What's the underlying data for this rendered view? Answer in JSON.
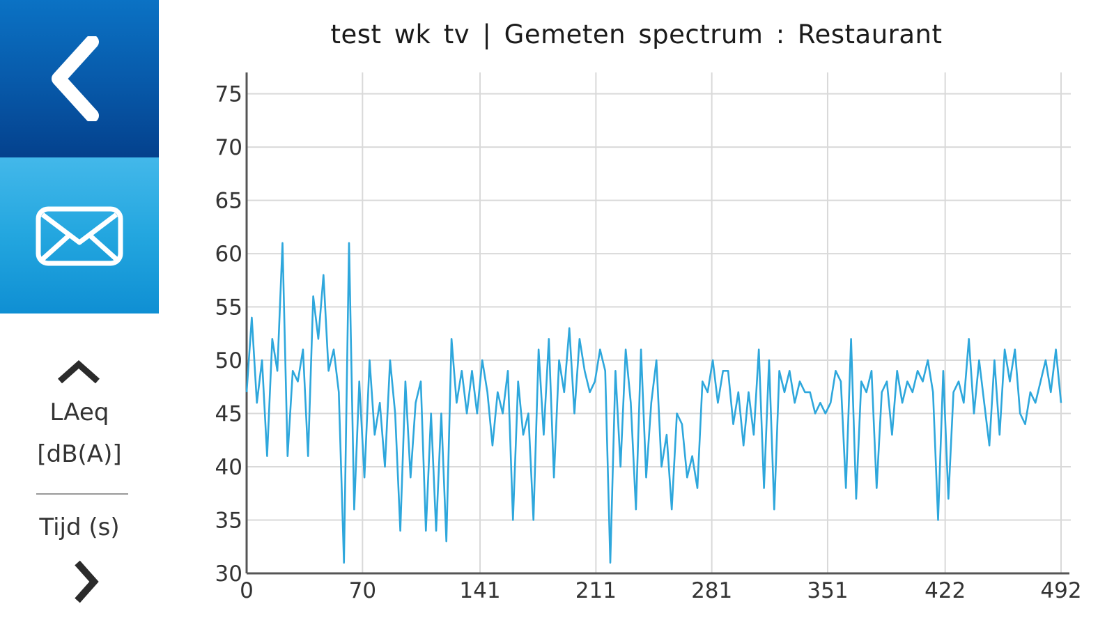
{
  "sidebar": {
    "back_icon": "chevron-left-icon",
    "mail_icon": "envelope-icon",
    "back_bg": "#0758a8",
    "mail_bg": "#23a6df",
    "y_axis_line1": "LAeq",
    "y_axis_line2": "[dB(A)]",
    "x_axis_label": "Tijd (s)"
  },
  "chart_data": {
    "type": "line",
    "title": "test wk tv | Gemeten spectrum : Restaurant",
    "xlabel": "Tijd (s)",
    "ylabel": "LAeq [dB(A)]",
    "xlim": [
      0,
      492
    ],
    "ylim": [
      30,
      77
    ],
    "x_ticks": [
      "0",
      "70",
      "141",
      "211",
      "281",
      "351",
      "422",
      "492"
    ],
    "y_ticks": [
      30,
      35,
      40,
      45,
      50,
      55,
      60,
      65,
      70,
      75
    ],
    "grid": true,
    "line_color": "#2ea7dc",
    "series": [
      {
        "values": [
          47,
          54,
          46,
          50,
          41,
          52,
          49,
          61,
          41,
          49,
          48,
          51,
          41,
          56,
          52,
          58,
          49,
          51,
          47,
          31,
          61,
          36,
          48,
          39,
          50,
          43,
          46,
          40,
          50,
          45,
          34,
          48,
          39,
          46,
          48,
          34,
          45,
          34,
          45,
          33,
          52,
          46,
          49,
          45,
          49,
          45,
          50,
          47,
          42,
          47,
          45,
          49,
          35,
          48,
          43,
          45,
          35,
          51,
          43,
          52,
          39,
          50,
          47,
          53,
          45,
          52,
          49,
          47,
          48,
          51,
          49,
          31,
          49,
          40,
          51,
          46,
          36,
          51,
          39,
          46,
          50,
          40,
          43,
          36,
          45,
          44,
          39,
          41,
          38,
          48,
          47,
          50,
          46,
          49,
          49,
          44,
          47,
          42,
          47,
          43,
          51,
          38,
          50,
          36,
          49,
          47,
          49,
          46,
          48,
          47,
          47,
          45,
          46,
          45,
          46,
          49,
          48,
          38,
          52,
          37,
          48,
          47,
          49,
          38,
          47,
          48,
          43,
          49,
          46,
          48,
          47,
          49,
          48,
          50,
          47,
          35,
          49,
          37,
          47,
          48,
          46,
          52,
          45,
          50,
          46,
          42,
          50,
          43,
          51,
          48,
          51,
          45,
          44,
          47,
          46,
          48,
          50,
          47,
          51,
          46
        ]
      }
    ]
  }
}
